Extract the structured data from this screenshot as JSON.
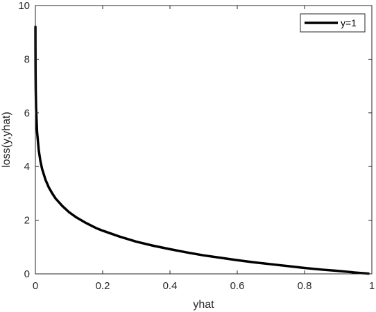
{
  "chart_data": {
    "type": "line",
    "xlabel": "yhat",
    "ylabel": "loss(y,yhat)",
    "xlim": [
      0,
      1
    ],
    "ylim": [
      0,
      10
    ],
    "x_ticks": [
      0,
      0.2,
      0.4,
      0.6,
      0.8,
      1
    ],
    "x_tick_labels": [
      "0",
      "0.2",
      "0.4",
      "0.6",
      "0.8",
      "1"
    ],
    "y_ticks": [
      0,
      2,
      4,
      6,
      8,
      10
    ],
    "y_tick_labels": [
      "0",
      "2",
      "4",
      "6",
      "8",
      "10"
    ],
    "grid": false,
    "legend_position": "top-right",
    "colors": {
      "line": "#000000",
      "axes": "#262626",
      "background": "#ffffff"
    },
    "series": [
      {
        "name": "y=1",
        "x": [
          0.0001,
          0.0002,
          0.0005,
          0.001,
          0.002,
          0.005,
          0.01,
          0.015,
          0.02,
          0.03,
          0.04,
          0.05,
          0.06,
          0.08,
          0.1,
          0.12,
          0.15,
          0.18,
          0.2,
          0.25,
          0.3,
          0.35,
          0.4,
          0.45,
          0.5,
          0.55,
          0.6,
          0.65,
          0.7,
          0.75,
          0.8,
          0.85,
          0.9,
          0.95,
          0.99
        ],
        "y": [
          9.21,
          8.52,
          7.6,
          6.91,
          6.21,
          5.3,
          4.61,
          4.2,
          3.91,
          3.51,
          3.22,
          3.0,
          2.81,
          2.53,
          2.3,
          2.12,
          1.9,
          1.71,
          1.61,
          1.39,
          1.2,
          1.05,
          0.92,
          0.8,
          0.69,
          0.6,
          0.51,
          0.43,
          0.36,
          0.29,
          0.22,
          0.16,
          0.11,
          0.05,
          0.01
        ]
      }
    ]
  }
}
